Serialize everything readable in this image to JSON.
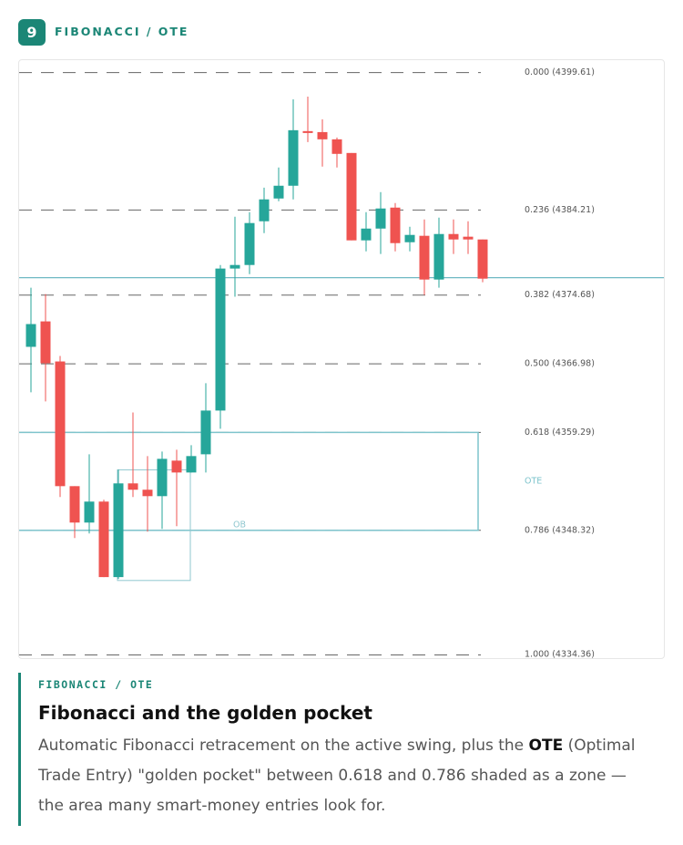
{
  "header": {
    "badge": "9",
    "title": "FIBONACCI / OTE"
  },
  "chart_data": {
    "type": "candlestick",
    "ylim": [
      4334,
      4401
    ],
    "up_color": "#26a69a",
    "down_color": "#ef5350",
    "open": [
      4368.88,
      4371.73,
      4367.24,
      4353.27,
      4349.19,
      4351.54,
      4343.08,
      4353.58,
      4352.87,
      4352.15,
      4356.13,
      4354.8,
      4356.84,
      4361.74,
      4377.65,
      4378.05,
      4382.95,
      4385.5,
      4386.93,
      4393.05,
      4392.94,
      4392.13,
      4390.6,
      4380.81,
      4382.13,
      4384.48,
      4380.6,
      4381.32,
      4376.42,
      4381.52,
      4381.22,
      4380.91
    ],
    "high": [
      4375.5,
      4374.79,
      4367.86,
      4353.27,
      4356.84,
      4351.74,
      4355.11,
      4361.53,
      4356.64,
      4357.15,
      4357.35,
      4357.86,
      4364.8,
      4378.05,
      4383.46,
      4383.97,
      4386.72,
      4388.97,
      4396.61,
      4396.92,
      4394.37,
      4392.33,
      4390.6,
      4383.97,
      4386.21,
      4384.99,
      4382.34,
      4383.15,
      4383.36,
      4383.15,
      4382.95,
      4380.91
    ],
    "low": [
      4363.78,
      4362.76,
      4352.05,
      4347.46,
      4347.97,
      4343.08,
      4342.87,
      4352.05,
      4348.17,
      4348.48,
      4348.79,
      4354.8,
      4354.8,
      4359.7,
      4374.49,
      4377.03,
      4381.62,
      4385.19,
      4385.4,
      4391.82,
      4389.07,
      4388.97,
      4380.81,
      4379.58,
      4379.28,
      4379.58,
      4379.58,
      4374.69,
      4375.5,
      4379.28,
      4379.28,
      4376.12
    ],
    "close": [
      4371.43,
      4367.04,
      4353.27,
      4349.19,
      4351.54,
      4343.08,
      4353.58,
      4352.87,
      4352.15,
      4356.33,
      4354.8,
      4356.64,
      4361.74,
      4377.65,
      4378.05,
      4382.75,
      4385.4,
      4386.93,
      4393.15,
      4392.84,
      4392.13,
      4390.5,
      4380.81,
      4382.13,
      4384.38,
      4380.5,
      4381.42,
      4376.42,
      4381.52,
      4380.91,
      4380.91,
      4376.52
    ],
    "fib_levels": [
      {
        "value": 4399.61,
        "label": "0.000 (4399.61)"
      },
      {
        "value": 4384.21,
        "label": "0.236 (4384.21)"
      },
      {
        "value": 4374.68,
        "label": "0.382 (4374.68)"
      },
      {
        "value": 4366.98,
        "label": "0.500 (4366.98)"
      },
      {
        "value": 4359.29,
        "label": "0.618 (4359.29)"
      },
      {
        "value": 4348.32,
        "label": "0.786 (4348.32)"
      },
      {
        "value": 4334.36,
        "label": "1.000 (4334.36)"
      }
    ],
    "price_line": 4376.63,
    "ote_zone": {
      "label": "OTE",
      "from": 4348.32,
      "to": 4359.29,
      "color": "#7ec4cc"
    },
    "order_block": {
      "label": "OB",
      "from": 4342.7,
      "to": 4355.1,
      "color": "#8fc7cf"
    }
  },
  "card": {
    "kicker": "FIBONACCI / OTE",
    "title": "Fibonacci and the golden pocket",
    "body": [
      "Automatic Fibonacci retracement on the active swing, plus the ",
      "OTE",
      " (Optimal Trade Entry) \"golden pocket\" between 0.618 and 0.786 shaded as a zone — the area many smart-money entries look for."
    ]
  }
}
